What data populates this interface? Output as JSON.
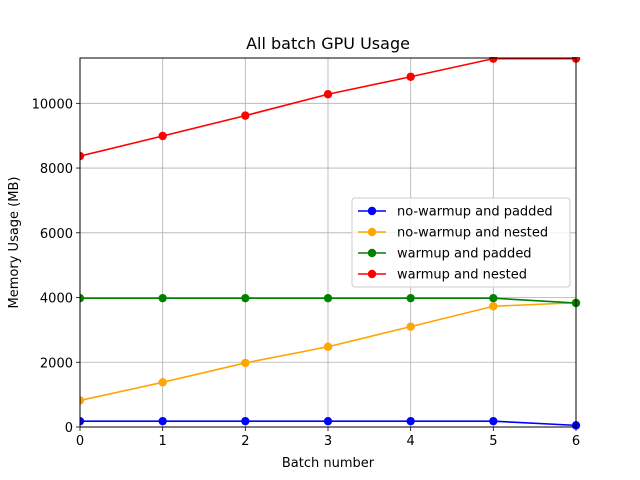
{
  "chart_data": {
    "type": "line",
    "title": "All batch GPU Usage",
    "xlabel": "Batch number",
    "ylabel": "Memory Usage (MB)",
    "x": [
      0,
      1,
      2,
      3,
      4,
      5,
      6
    ],
    "xlim": [
      0,
      6
    ],
    "ylim": [
      0,
      11400
    ],
    "xticks": [
      "0",
      "1",
      "2",
      "3",
      "4",
      "5",
      "6"
    ],
    "yticks": [
      0,
      2000,
      4000,
      6000,
      8000,
      10000
    ],
    "ytick_labels": [
      "0",
      "2000",
      "4000",
      "6000",
      "8000",
      "10000"
    ],
    "grid": true,
    "legend_position": "center-right",
    "series": [
      {
        "name": "no-warmup and padded",
        "color": "#0000ff",
        "values": [
          180,
          180,
          180,
          180,
          180,
          180,
          50
        ]
      },
      {
        "name": "no-warmup and nested",
        "color": "#ffa500",
        "values": [
          820,
          1380,
          1980,
          2480,
          3100,
          3730,
          3840
        ]
      },
      {
        "name": "warmup and padded",
        "color": "#008000",
        "values": [
          3980,
          3980,
          3980,
          3980,
          3980,
          3980,
          3830
        ]
      },
      {
        "name": "warmup and nested",
        "color": "#ff0000",
        "values": [
          8370,
          8990,
          9620,
          10280,
          10820,
          11380,
          11380
        ]
      }
    ]
  }
}
